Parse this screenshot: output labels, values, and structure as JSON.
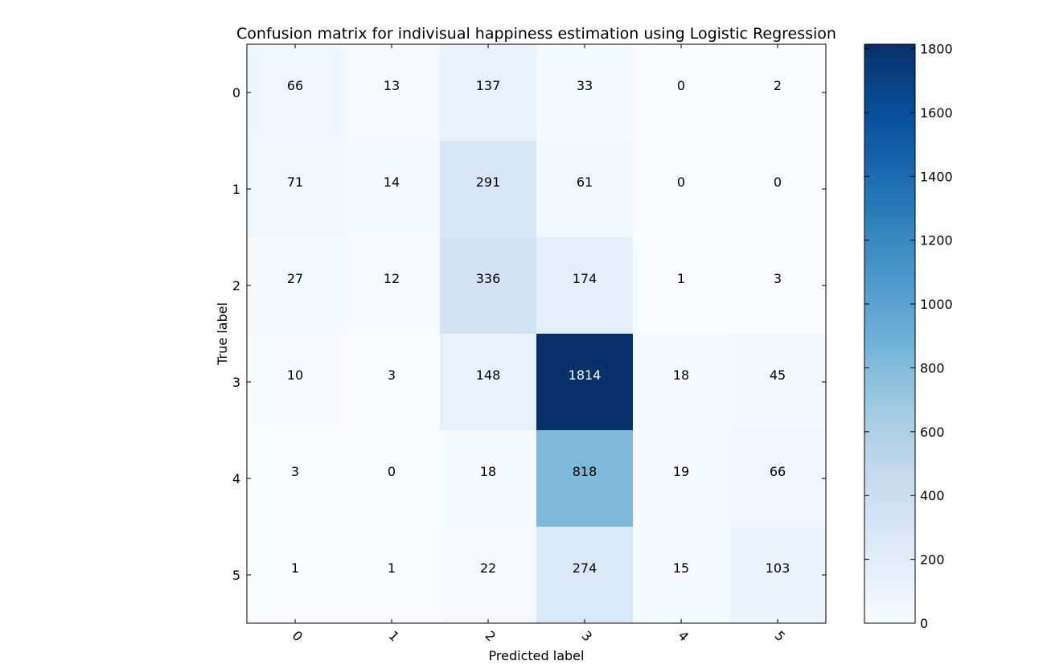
{
  "chart_data": {
    "type": "heatmap",
    "title": "Confusion matrix for indivisual happiness estimation using Logistic Regression",
    "xlabel": "Predicted label",
    "ylabel": "True label",
    "x_categories": [
      "0",
      "1",
      "2",
      "3",
      "4",
      "5"
    ],
    "y_categories": [
      "0",
      "1",
      "2",
      "3",
      "4",
      "5"
    ],
    "values": [
      [
        66,
        13,
        137,
        33,
        0,
        2
      ],
      [
        71,
        14,
        291,
        61,
        0,
        0
      ],
      [
        27,
        12,
        336,
        174,
        1,
        3
      ],
      [
        10,
        3,
        148,
        1814,
        18,
        45
      ],
      [
        3,
        0,
        18,
        818,
        19,
        66
      ],
      [
        1,
        1,
        22,
        274,
        15,
        103
      ]
    ],
    "colormap": "Blues",
    "colorbar": {
      "range": [
        0,
        1814
      ],
      "ticks": [
        0,
        200,
        400,
        600,
        800,
        1000,
        1200,
        1400,
        1600,
        1800
      ],
      "tick_labels": [
        "0",
        "200",
        "400",
        "600",
        "800",
        "1000",
        "1200",
        "1400",
        "1600",
        "1800"
      ]
    },
    "x_tick_rotation_deg": 45,
    "grid": false
  }
}
